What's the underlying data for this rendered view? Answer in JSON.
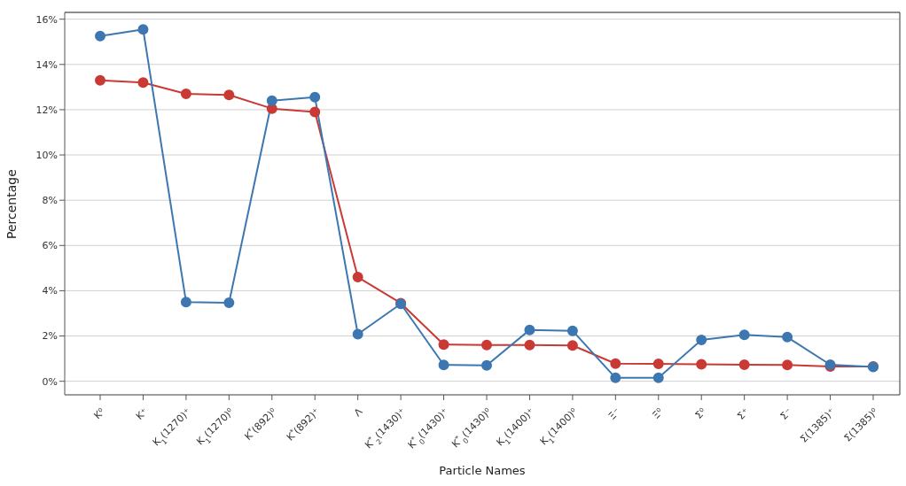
{
  "chart_data": {
    "type": "line",
    "xlabel": "Particle Names",
    "ylabel": "Percentage",
    "categories": [
      "K⁰",
      "K⁺",
      "K$_{1}$(1270)⁺",
      "K$_{1}$(1270)⁰",
      "K$^{*}$(892)⁰",
      "K$^{*}$(892)⁺",
      "Λ",
      "K$^{*}$$_{2}$(1430)⁺",
      "K$^{*}$$_{0}$(1430)⁺",
      "K$^{*}$$_{0}$(1430)⁰",
      "K$_{1}$(1400)⁺",
      "K$_{1}$(1400)⁰",
      "Ξ⁻",
      "Ξ⁰",
      "Σ⁰",
      "Σ⁺",
      "Σ⁻",
      "Σ(1385)⁺",
      "Σ(1385)⁰"
    ],
    "series": [
      {
        "color": "#c93a35",
        "values": [
          13.3,
          13.2,
          12.7,
          12.65,
          12.05,
          11.9,
          4.6,
          3.45,
          1.62,
          1.6,
          1.6,
          1.58,
          0.78,
          0.77,
          0.75,
          0.73,
          0.72,
          0.65,
          0.65
        ]
      },
      {
        "color": "#3d77b1",
        "values": [
          15.25,
          15.55,
          3.5,
          3.47,
          12.4,
          12.55,
          2.08,
          3.42,
          0.72,
          0.7,
          2.27,
          2.23,
          0.15,
          0.15,
          1.83,
          2.05,
          1.95,
          0.73,
          0.63
        ]
      }
    ],
    "ylim": [
      -0.6,
      16.3
    ],
    "yticks": [
      {
        "value": 0,
        "label": "0%"
      },
      {
        "value": 2,
        "label": "2%"
      },
      {
        "value": 4,
        "label": "4%"
      },
      {
        "value": 6,
        "label": "6%"
      },
      {
        "value": 8,
        "label": "8%"
      },
      {
        "value": 10,
        "label": "10%"
      },
      {
        "value": 12,
        "label": "12%"
      },
      {
        "value": 14,
        "label": "14%"
      },
      {
        "value": 16,
        "label": "16%"
      }
    ],
    "grid": "y",
    "marker": "circle",
    "line_style": "solid"
  }
}
